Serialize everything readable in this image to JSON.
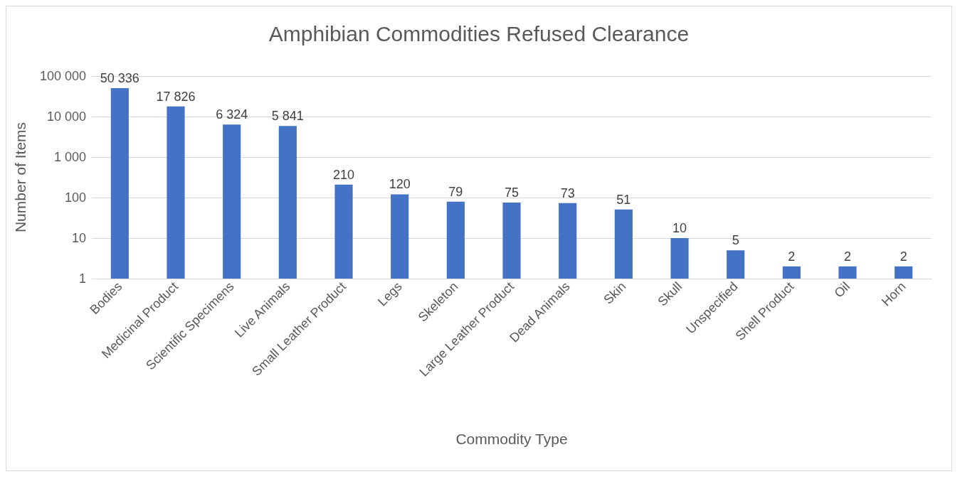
{
  "chart_data": {
    "type": "bar",
    "title": "Amphibian Commodities Refused Clearance",
    "xlabel": "Commodity Type",
    "ylabel": "Number of Items",
    "categories": [
      "Bodies",
      "Medicinal Product",
      "Scientific Specimens",
      "Live Animals",
      "Small Leather Product",
      "Legs",
      "Skeleton",
      "Large Leather Product",
      "Dead Animals",
      "Skin",
      "Skull",
      "Unspecified",
      "Shell Product",
      "Oil",
      "Horn"
    ],
    "values": [
      50336,
      17826,
      6324,
      5841,
      210,
      120,
      79,
      75,
      73,
      51,
      10,
      5,
      2,
      2,
      2
    ],
    "value_labels": [
      "50 336",
      "17 826",
      "6 324",
      "5 841",
      "210",
      "120",
      "79",
      "75",
      "73",
      "51",
      "10",
      "5",
      "2",
      "2",
      "2"
    ],
    "color": "#4472c4",
    "log": true,
    "ylim": [
      1,
      100000
    ],
    "yticks": [
      1,
      10,
      100,
      {
        "value": 1000,
        "label": "1 000"
      },
      {
        "value": 10000,
        "label": "10 000"
      },
      {
        "value": 100000,
        "label": "100 000"
      }
    ],
    "grid": "y"
  }
}
